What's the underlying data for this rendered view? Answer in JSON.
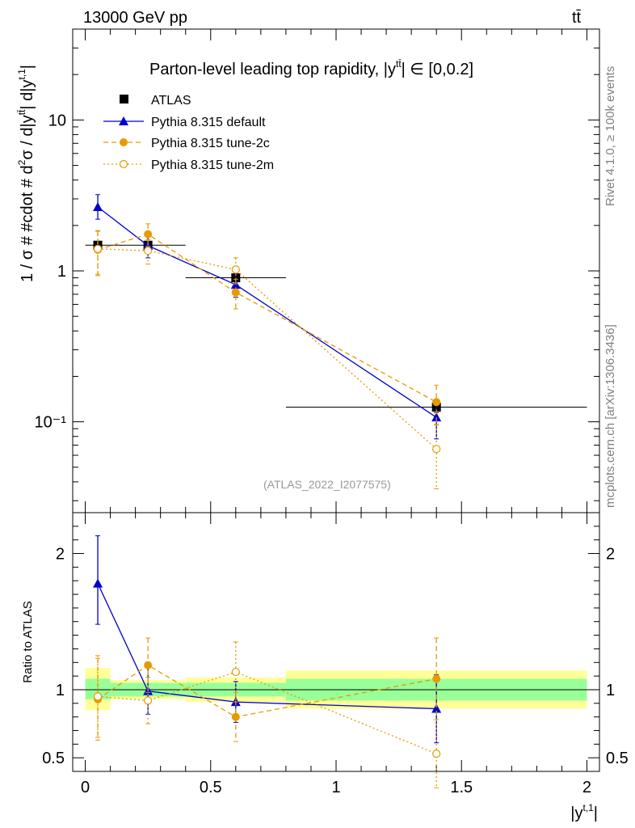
{
  "header": {
    "energy_label": "13000 GeV pp",
    "process_label": "tt̄",
    "title": "Parton-level leading top rapidity, |y",
    "title_sup": "tt̄",
    "title_tail": "| ∈ [0,0.2]",
    "watermark": "(ATLAS_2022_I2077575)",
    "side_text_rivet": "Rivet 4.1.0, ≥ 100k events",
    "side_text_mcplots": "mcplots.cern.ch [arXiv:1306.3436]"
  },
  "colors": {
    "data": "#000000",
    "default": "#0000cc",
    "tune2c": "#e69a00",
    "tune2m": "#e69a00",
    "band_inner": "#99ff99",
    "band_outer": "#ffff99"
  },
  "chart_data": [
    {
      "type": "line",
      "panel": "main",
      "ylabel": "1 / σ # #cdot # d²σ / d|y^{tt̄}| d|y^{t,1}|",
      "ylabel_main": "1 / σ # #cdot # d",
      "ylabel_sup1": "2",
      "ylabel_mid": "σ / d|y",
      "ylabel_sup2": "tt̄",
      "ylabel_mid2": "| d|y",
      "ylabel_sup3": "t,1",
      "ylabel_end": "|",
      "yscale": "log",
      "xlim": [
        -0.05,
        2.05
      ],
      "ylim": [
        0.025,
        40
      ],
      "yticks_labels": [
        "10⁻¹",
        "1",
        "10"
      ],
      "ytick_values": [
        0.1,
        1,
        10
      ],
      "legend_position": "top-left",
      "series": [
        {
          "name": "ATLAS",
          "style": "data",
          "x": [
            0.05,
            0.25,
            0.6,
            1.4
          ],
          "xerr": [
            0.05,
            0.15,
            0.2,
            0.6
          ],
          "y": [
            1.48,
            1.48,
            0.9,
            0.125
          ],
          "yerr_lo": [
            0.06,
            0.05,
            0.05,
            0.01
          ],
          "yerr_hi": [
            0.06,
            0.05,
            0.05,
            0.01
          ]
        },
        {
          "name": "Pythia 8.315 default",
          "style": "default",
          "x": [
            0.05,
            0.25,
            0.6,
            1.4
          ],
          "y": [
            2.65,
            1.47,
            0.81,
            0.107
          ],
          "yerr_lo": [
            0.45,
            0.25,
            0.14,
            0.03
          ],
          "yerr_hi": [
            0.55,
            0.25,
            0.14,
            0.03
          ]
        },
        {
          "name": "Pythia 8.315 tune-2c",
          "style": "tune2c",
          "x": [
            0.05,
            0.25,
            0.6,
            1.4
          ],
          "y": [
            1.38,
            1.75,
            0.72,
            0.135
          ],
          "yerr_lo": [
            0.45,
            0.3,
            0.16,
            0.04
          ],
          "yerr_hi": [
            0.45,
            0.3,
            0.16,
            0.04
          ]
        },
        {
          "name": "Pythia 8.315 tune-2m",
          "style": "tune2m",
          "x": [
            0.05,
            0.25,
            0.6,
            1.4
          ],
          "y": [
            1.4,
            1.36,
            1.02,
            0.066
          ],
          "yerr_lo": [
            0.45,
            0.25,
            0.2,
            0.03
          ],
          "yerr_hi": [
            0.45,
            0.25,
            0.2,
            0.03
          ]
        }
      ]
    },
    {
      "type": "line",
      "panel": "ratio",
      "ylabel": "Ratio to ATLAS",
      "xlabel": "|y^{t,1}|",
      "xlabel_main": "|y",
      "xlabel_sup": "t,1",
      "xlabel_end": "|",
      "xlim": [
        -0.05,
        2.05
      ],
      "ylim": [
        0.4,
        2.3
      ],
      "xticks": [
        0,
        0.5,
        1,
        1.5,
        2
      ],
      "xtick_labels": [
        "0",
        "0.5",
        "1",
        "1.5",
        "2"
      ],
      "yticks": [
        0.5,
        1,
        2
      ],
      "ytick_labels": [
        "0.5",
        "1",
        "2"
      ],
      "bands": [
        {
          "x0": 0.0,
          "x1": 0.1,
          "inner": [
            0.93,
            1.08
          ],
          "outer": [
            0.85,
            1.16
          ]
        },
        {
          "x0": 0.1,
          "x1": 0.4,
          "inner": [
            0.95,
            1.05
          ],
          "outer": [
            0.93,
            1.07
          ]
        },
        {
          "x0": 0.4,
          "x1": 0.8,
          "inner": [
            0.95,
            1.05
          ],
          "outer": [
            0.91,
            1.09
          ]
        },
        {
          "x0": 0.8,
          "x1": 2.0,
          "inner": [
            0.92,
            1.08
          ],
          "outer": [
            0.86,
            1.14
          ]
        }
      ],
      "series": [
        {
          "name": "Pythia 8.315 default",
          "style": "default",
          "x": [
            0.05,
            0.25,
            0.6,
            1.4
          ],
          "y": [
            1.78,
            0.99,
            0.91,
            0.86
          ],
          "yerr_lo": [
            0.3,
            0.17,
            0.15,
            0.25
          ],
          "yerr_hi": [
            0.35,
            0.17,
            0.15,
            0.25
          ]
        },
        {
          "name": "Pythia 8.315 tune-2c",
          "style": "tune2c",
          "x": [
            0.05,
            0.25,
            0.6,
            1.4
          ],
          "y": [
            0.93,
            1.18,
            0.8,
            1.08
          ],
          "yerr_lo": [
            0.3,
            0.2,
            0.18,
            0.3
          ],
          "yerr_hi": [
            0.3,
            0.2,
            0.18,
            0.3
          ]
        },
        {
          "name": "Pythia 8.315 tune-2m",
          "style": "tune2m",
          "x": [
            0.05,
            0.25,
            0.6,
            1.4
          ],
          "y": [
            0.95,
            0.92,
            1.13,
            0.53
          ],
          "yerr_lo": [
            0.3,
            0.17,
            0.22,
            0.25
          ],
          "yerr_hi": [
            0.3,
            0.17,
            0.22,
            0.25
          ]
        }
      ]
    }
  ]
}
